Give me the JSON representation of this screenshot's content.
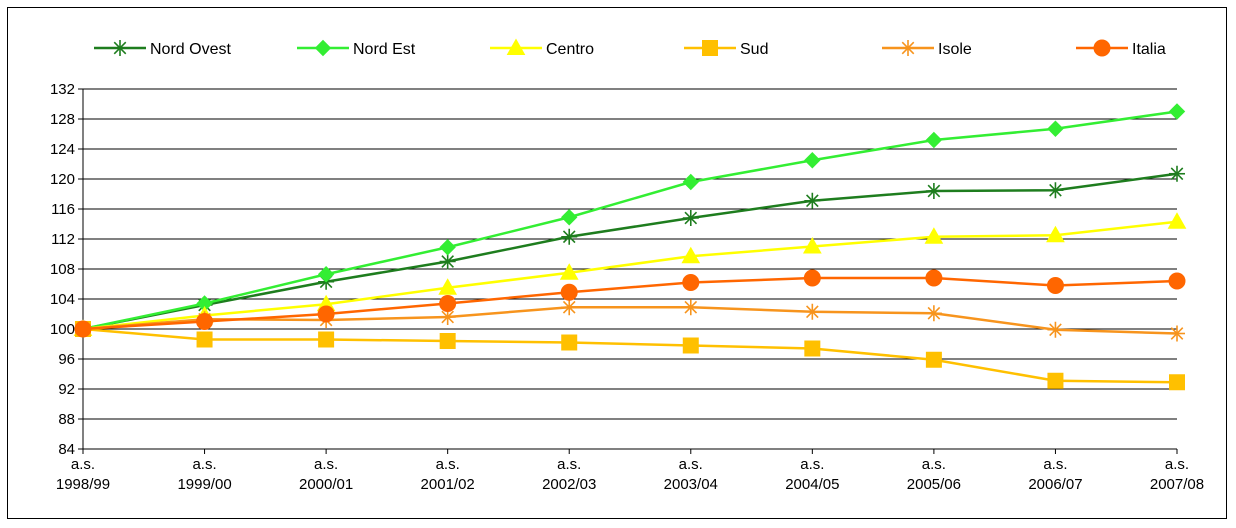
{
  "chart_data": {
    "type": "line",
    "title": "",
    "xlabel": "",
    "ylabel": "",
    "categories": [
      [
        "a.s.",
        "1998/99"
      ],
      [
        "a.s.",
        "1999/00"
      ],
      [
        "a.s.",
        "2000/01"
      ],
      [
        "a.s.",
        "2001/02"
      ],
      [
        "a.s.",
        "2002/03"
      ],
      [
        "a.s.",
        "2003/04"
      ],
      [
        "a.s.",
        "2004/05"
      ],
      [
        "a.s.",
        "2005/06"
      ],
      [
        "a.s.",
        "2006/07"
      ],
      [
        "a.s.",
        "2007/08"
      ]
    ],
    "ylim": [
      84,
      132
    ],
    "yticks": [
      84,
      88,
      92,
      96,
      100,
      104,
      108,
      112,
      116,
      120,
      124,
      128,
      132
    ],
    "grid": true,
    "legend_position": "top",
    "series": [
      {
        "name": "Nord Ovest",
        "color": "#1e7d1e",
        "marker": "asterisk",
        "values": [
          100.0,
          103.2,
          106.3,
          109.0,
          112.3,
          114.8,
          117.1,
          118.4,
          118.5,
          120.7
        ]
      },
      {
        "name": "Nord Est",
        "color": "#33ee33",
        "marker": "diamond",
        "values": [
          100.0,
          103.4,
          107.3,
          110.9,
          114.9,
          119.6,
          122.5,
          125.2,
          126.7,
          129.0
        ]
      },
      {
        "name": "Centro",
        "color": "#ffff00",
        "marker": "triangle",
        "values": [
          100.0,
          101.8,
          103.3,
          105.5,
          107.5,
          109.7,
          111.0,
          112.3,
          112.5,
          114.3
        ]
      },
      {
        "name": "Sud",
        "color": "#ffc000",
        "marker": "square",
        "values": [
          100.0,
          98.6,
          98.6,
          98.4,
          98.2,
          97.8,
          97.4,
          95.9,
          93.1,
          92.9
        ]
      },
      {
        "name": "Isole",
        "color": "#f7941d",
        "marker": "star",
        "values": [
          100.0,
          101.3,
          101.2,
          101.6,
          102.9,
          102.9,
          102.3,
          102.1,
          99.9,
          99.4
        ]
      },
      {
        "name": "Italia",
        "color": "#ff6600",
        "marker": "circle",
        "values": [
          100.0,
          101.0,
          102.0,
          103.4,
          104.9,
          106.2,
          106.8,
          106.8,
          105.8,
          106.4
        ]
      }
    ]
  }
}
